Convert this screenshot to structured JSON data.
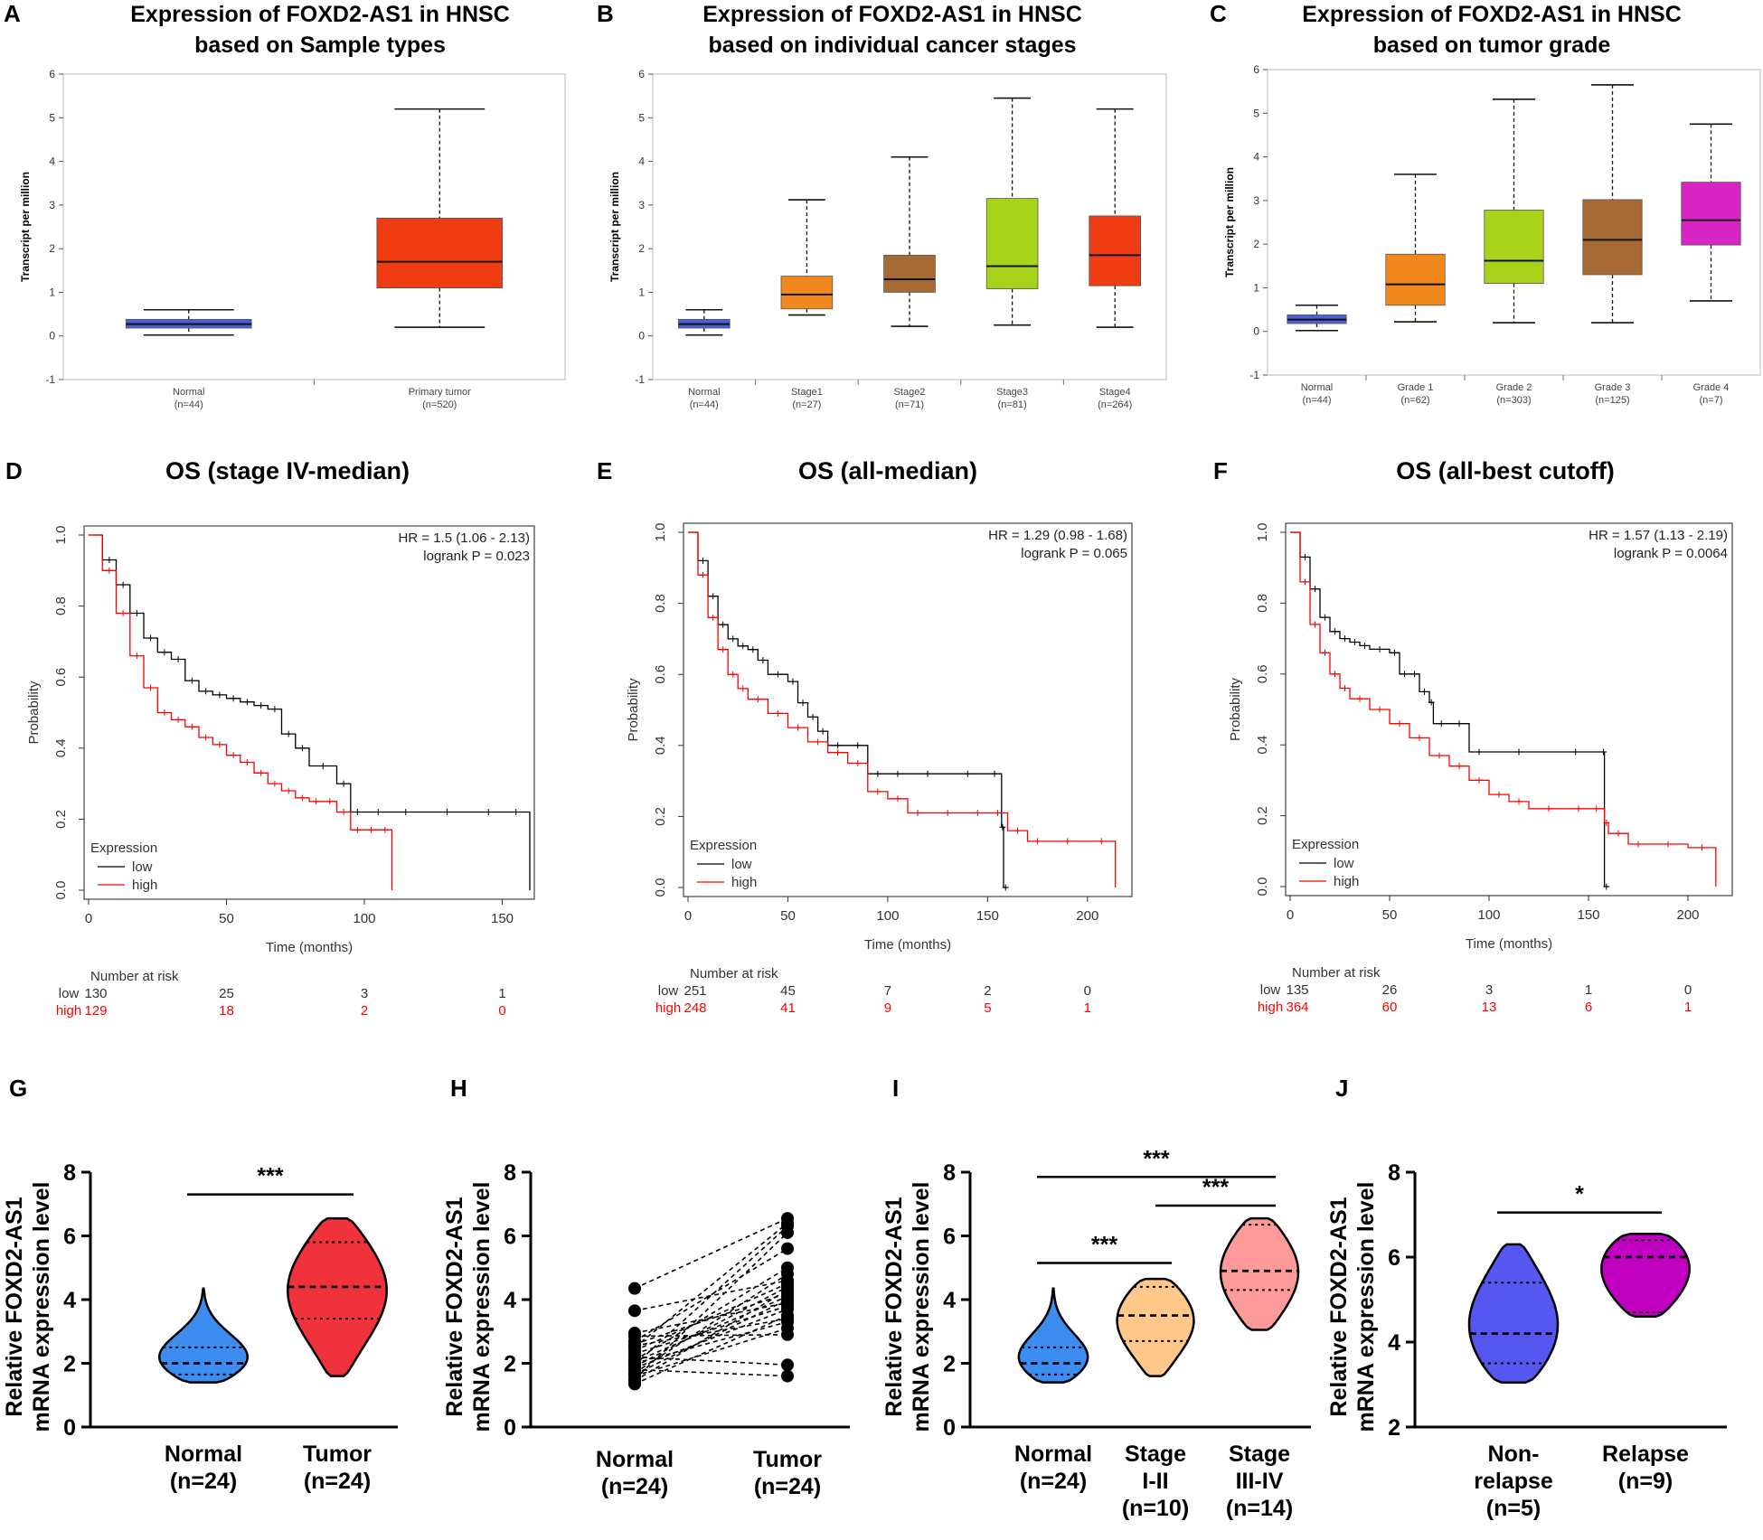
{
  "figure": {
    "colors": {
      "normal_blue": "#4a5fd8",
      "orange": "#f0881e",
      "brown": "#a86a35",
      "green": "#a7d41b",
      "red": "#f03c13",
      "magenta": "#d824c4",
      "km_high": "#ff0000",
      "km_low": "#000000",
      "violin_blue": "#3d8df0",
      "violin_red": "#f0323c",
      "violin_orange": "#ffc78a",
      "violin_pink": "#ff9a9a",
      "violin_purple": "#5656f0",
      "violin_magenta": "#c200c2"
    }
  },
  "chart_data": [
    {
      "panel": "A",
      "type": "box",
      "title": "Expression of FOXD2-AS1 in HNSC based on Sample types",
      "ylabel": "Transcript per million",
      "ylim": [
        -1,
        6
      ],
      "yticks": [
        "-1",
        "0",
        "1",
        "2",
        "3",
        "4",
        "5",
        "6"
      ],
      "boxes": [
        {
          "label": "Normal",
          "n": "(n=44)",
          "color": "#4a5fd8",
          "min": 0.02,
          "q1": 0.18,
          "median": 0.27,
          "q3": 0.38,
          "max": 0.6
        },
        {
          "label": "Primary tumor",
          "n": "(n=520)",
          "color": "#f03c13",
          "min": 0.2,
          "q1": 1.1,
          "median": 1.7,
          "q3": 2.7,
          "max": 5.2
        }
      ]
    },
    {
      "panel": "B",
      "type": "box",
      "title": "Expression of FOXD2-AS1 in HNSC based on individual cancer stages",
      "ylabel": "Transcript per million",
      "ylim": [
        -1,
        6
      ],
      "yticks": [
        "-1",
        "0",
        "1",
        "2",
        "3",
        "4",
        "5",
        "6"
      ],
      "boxes": [
        {
          "label": "Normal",
          "n": "(n=44)",
          "color": "#4a5fd8",
          "min": 0.02,
          "q1": 0.18,
          "median": 0.27,
          "q3": 0.38,
          "max": 0.6
        },
        {
          "label": "Stage1",
          "n": "(n=27)",
          "color": "#f0881e",
          "min": 0.48,
          "q1": 0.62,
          "median": 0.95,
          "q3": 1.37,
          "max": 3.12
        },
        {
          "label": "Stage2",
          "n": "(n=71)",
          "color": "#a86a35",
          "min": 0.22,
          "q1": 1.0,
          "median": 1.3,
          "q3": 1.85,
          "max": 4.1
        },
        {
          "label": "Stage3",
          "n": "(n=81)",
          "color": "#a7d41b",
          "min": 0.25,
          "q1": 1.08,
          "median": 1.6,
          "q3": 3.15,
          "max": 5.45
        },
        {
          "label": "Stage4",
          "n": "(n=264)",
          "color": "#f03c13",
          "min": 0.2,
          "q1": 1.15,
          "median": 1.85,
          "q3": 2.75,
          "max": 5.2
        }
      ]
    },
    {
      "panel": "C",
      "type": "box",
      "title": "Expression of FOXD2-AS1 in HNSC based on tumor grade",
      "ylabel": "Transcript per million",
      "ylim": [
        -1,
        6
      ],
      "yticks": [
        "-1",
        "0",
        "1",
        "2",
        "3",
        "4",
        "5",
        "6"
      ],
      "boxes": [
        {
          "label": "Normal",
          "n": "(n=44)",
          "color": "#4a5fd8",
          "min": 0.02,
          "q1": 0.18,
          "median": 0.27,
          "q3": 0.38,
          "max": 0.6
        },
        {
          "label": "Grade 1",
          "n": "(n=62)",
          "color": "#f0881e",
          "min": 0.22,
          "q1": 0.6,
          "median": 1.08,
          "q3": 1.77,
          "max": 3.6
        },
        {
          "label": "Grade 2",
          "n": "(n=303)",
          "color": "#a7d41b",
          "min": 0.2,
          "q1": 1.1,
          "median": 1.62,
          "q3": 2.78,
          "max": 5.32
        },
        {
          "label": "Grade 3",
          "n": "(n=125)",
          "color": "#a86a35",
          "min": 0.2,
          "q1": 1.3,
          "median": 2.1,
          "q3": 3.02,
          "max": 5.65
        },
        {
          "label": "Grade 4",
          "n": "(n=7)",
          "color": "#d824c4",
          "min": 0.7,
          "q1": 1.98,
          "median": 2.55,
          "q3": 3.42,
          "max": 4.75
        }
      ]
    },
    {
      "panel": "D",
      "type": "line",
      "title": "OS (stage IV-median)",
      "xlabel": "Time (months)",
      "ylabel": "Probability",
      "xlim": [
        0,
        160
      ],
      "ylim": [
        0,
        1
      ],
      "xticks": [
        "0",
        "50",
        "100",
        "150"
      ],
      "yticks": [
        "0.0",
        "0.2",
        "0.4",
        "0.6",
        "0.8",
        "1.0"
      ],
      "hr": "HR = 1.5 (1.06 - 2.13)",
      "logrank": "logrank P = 0.023",
      "legend_title": "Expression",
      "series": [
        {
          "name": "low",
          "color": "#000000",
          "x": [
            0,
            5,
            10,
            15,
            20,
            25,
            30,
            35,
            40,
            45,
            50,
            55,
            60,
            65,
            70,
            75,
            80,
            90,
            95,
            100,
            110,
            120,
            140,
            150,
            160
          ],
          "y": [
            1.0,
            0.93,
            0.86,
            0.78,
            0.71,
            0.67,
            0.65,
            0.59,
            0.56,
            0.55,
            0.54,
            0.53,
            0.52,
            0.51,
            0.44,
            0.4,
            0.35,
            0.3,
            0.22,
            0.22,
            0.22,
            0.22,
            0.22,
            0.22,
            0
          ]
        },
        {
          "name": "high",
          "color": "#ff0000",
          "x": [
            0,
            5,
            10,
            15,
            20,
            25,
            30,
            35,
            40,
            45,
            50,
            55,
            60,
            65,
            70,
            75,
            80,
            85,
            90,
            95,
            100,
            105,
            110
          ],
          "y": [
            1.0,
            0.9,
            0.78,
            0.66,
            0.57,
            0.5,
            0.48,
            0.46,
            0.43,
            0.41,
            0.38,
            0.36,
            0.33,
            0.3,
            0.28,
            0.26,
            0.25,
            0.25,
            0.22,
            0.17,
            0.17,
            0.17,
            0
          ]
        }
      ],
      "risk": {
        "title": "Number at risk",
        "low": [
          "130",
          "25",
          "3",
          "1"
        ],
        "high": [
          "129",
          "18",
          "2",
          "0"
        ]
      }
    },
    {
      "panel": "E",
      "type": "line",
      "title": "OS (all-median)",
      "xlabel": "Time (months)",
      "ylabel": "Probability",
      "xlim": [
        0,
        220
      ],
      "ylim": [
        0,
        1
      ],
      "xticks": [
        "0",
        "50",
        "100",
        "150",
        "200"
      ],
      "yticks": [
        "0.0",
        "0.2",
        "0.4",
        "0.6",
        "0.8",
        "1.0"
      ],
      "hr": "HR = 1.29 (0.98 - 1.68)",
      "logrank": "logrank P = 0.065",
      "legend_title": "Expression",
      "series": [
        {
          "name": "low",
          "color": "#000000",
          "x": [
            0,
            5,
            10,
            15,
            20,
            25,
            30,
            35,
            40,
            50,
            55,
            60,
            65,
            70,
            80,
            90,
            100,
            110,
            130,
            150,
            157,
            158,
            160
          ],
          "y": [
            1.0,
            0.92,
            0.82,
            0.74,
            0.7,
            0.68,
            0.67,
            0.64,
            0.6,
            0.58,
            0.52,
            0.48,
            0.44,
            0.4,
            0.4,
            0.32,
            0.32,
            0.32,
            0.32,
            0.32,
            0.17,
            0,
            0
          ]
        },
        {
          "name": "high",
          "color": "#ff0000",
          "x": [
            0,
            5,
            10,
            15,
            20,
            25,
            30,
            40,
            50,
            60,
            70,
            80,
            90,
            100,
            110,
            120,
            140,
            150,
            160,
            170,
            180,
            200,
            214
          ],
          "y": [
            1.0,
            0.88,
            0.76,
            0.67,
            0.6,
            0.56,
            0.53,
            0.49,
            0.45,
            0.41,
            0.38,
            0.35,
            0.27,
            0.25,
            0.21,
            0.21,
            0.21,
            0.21,
            0.16,
            0.13,
            0.13,
            0.13,
            0
          ]
        }
      ],
      "risk": {
        "title": "Number at risk",
        "low": [
          "251",
          "45",
          "7",
          "2",
          "0"
        ],
        "high": [
          "248",
          "41",
          "9",
          "5",
          "1"
        ]
      }
    },
    {
      "panel": "F",
      "type": "line",
      "title": "OS (all-best cutoff)",
      "xlabel": "Time (months)",
      "ylabel": "Probability",
      "xlim": [
        0,
        220
      ],
      "ylim": [
        0,
        1
      ],
      "xticks": [
        "0",
        "50",
        "100",
        "150",
        "200"
      ],
      "yticks": [
        "0.0",
        "0.2",
        "0.4",
        "0.6",
        "0.8",
        "1.0"
      ],
      "hr": "HR = 1.57 (1.13 - 2.19)",
      "logrank": "logrank P = 0.0064",
      "legend_title": "Expression",
      "series": [
        {
          "name": "low",
          "color": "#000000",
          "x": [
            0,
            5,
            10,
            15,
            20,
            25,
            30,
            35,
            40,
            50,
            55,
            60,
            65,
            70,
            72,
            80,
            90,
            100,
            130,
            157,
            158,
            160
          ],
          "y": [
            1.0,
            0.93,
            0.84,
            0.76,
            0.72,
            0.7,
            0.69,
            0.68,
            0.67,
            0.66,
            0.6,
            0.6,
            0.55,
            0.52,
            0.46,
            0.46,
            0.38,
            0.38,
            0.38,
            0.38,
            0,
            0
          ]
        },
        {
          "name": "high",
          "color": "#ff0000",
          "x": [
            0,
            5,
            10,
            15,
            20,
            25,
            30,
            40,
            50,
            60,
            70,
            80,
            90,
            100,
            110,
            120,
            140,
            150,
            158,
            160,
            170,
            180,
            200,
            214
          ],
          "y": [
            1.0,
            0.86,
            0.74,
            0.66,
            0.6,
            0.56,
            0.53,
            0.5,
            0.46,
            0.42,
            0.37,
            0.34,
            0.3,
            0.26,
            0.24,
            0.22,
            0.22,
            0.22,
            0.18,
            0.15,
            0.12,
            0.12,
            0.11,
            0
          ]
        }
      ],
      "risk": {
        "title": "Number at risk",
        "low": [
          "135",
          "26",
          "3",
          "1",
          "0"
        ],
        "high": [
          "364",
          "60",
          "13",
          "6",
          "1"
        ]
      }
    },
    {
      "panel": "G",
      "type": "violin",
      "ylabel": [
        "Relative FOXD2-AS1",
        "mRNA expression level"
      ],
      "ylim": [
        0,
        8
      ],
      "yticks": [
        "0",
        "2",
        "4",
        "6",
        "8"
      ],
      "groups": [
        {
          "label": [
            "Normal",
            "(n=24)"
          ],
          "color": "#3d8df0",
          "min": 1.4,
          "max": 4.35,
          "median": 2.0,
          "q1": 1.65,
          "q3": 2.5
        },
        {
          "label": [
            "Tumor",
            "(n=24)"
          ],
          "color": "#f0323c",
          "min": 1.6,
          "max": 6.55,
          "median": 4.4,
          "q1": 3.4,
          "q3": 5.8
        }
      ],
      "significance": [
        {
          "label": "***",
          "from": 0,
          "to": 1,
          "y": 7.3
        }
      ]
    },
    {
      "panel": "H",
      "type": "scatter",
      "ylabel": [
        "Relative FOXD2-AS1",
        "mRNA expression level"
      ],
      "ylim": [
        0,
        8
      ],
      "yticks": [
        "0",
        "2",
        "4",
        "6",
        "8"
      ],
      "groups": [
        [
          "Normal",
          "(n=24)"
        ],
        [
          "Tumor",
          "(n=24)"
        ]
      ],
      "normal": [
        4.35,
        3.65,
        2.95,
        2.85,
        2.7,
        2.6,
        2.55,
        2.5,
        2.4,
        2.3,
        2.2,
        2.1,
        2.05,
        2.0,
        1.95,
        1.9,
        1.85,
        1.8,
        1.7,
        1.65,
        1.6,
        1.5,
        1.45,
        1.35
      ],
      "tumor": [
        6.55,
        6.4,
        6.3,
        6.1,
        5.6,
        5.0,
        4.8,
        4.6,
        4.5,
        4.4,
        4.3,
        4.2,
        4.1,
        4.0,
        3.9,
        3.8,
        3.7,
        3.5,
        3.4,
        3.3,
        3.1,
        2.9,
        1.95,
        1.6
      ]
    },
    {
      "panel": "I",
      "type": "violin",
      "ylabel": [
        "Relative FOXD2-AS1",
        "mRNA expression level"
      ],
      "ylim": [
        0,
        8
      ],
      "yticks": [
        "0",
        "2",
        "4",
        "6",
        "8"
      ],
      "groups": [
        {
          "label": [
            "Normal",
            "(n=24)"
          ],
          "color": "#3d8df0",
          "min": 1.4,
          "max": 4.35,
          "median": 2.0,
          "q1": 1.65,
          "q3": 2.5
        },
        {
          "label": [
            "Stage",
            "I-II",
            "(n=10)"
          ],
          "color": "#ffc78a",
          "min": 1.6,
          "max": 4.65,
          "median": 3.5,
          "q1": 2.7,
          "q3": 4.4
        },
        {
          "label": [
            "Stage",
            "III-IV",
            "(n=14)"
          ],
          "color": "#ff9a9a",
          "min": 3.05,
          "max": 6.55,
          "median": 4.9,
          "q1": 4.3,
          "q3": 6.35
        }
      ],
      "significance": [
        {
          "label": "***",
          "from": 0,
          "to": 2,
          "y": 7.85
        },
        {
          "label": "***",
          "from": 1,
          "to": 2,
          "y": 6.95
        },
        {
          "label": "***",
          "from": 0,
          "to": 1,
          "y": 5.15
        }
      ]
    },
    {
      "panel": "J",
      "type": "violin",
      "ylabel": [
        "Relative FOXD2-AS1",
        "mRNA expression level"
      ],
      "ylim": [
        2,
        8
      ],
      "yticks": [
        "2",
        "4",
        "6",
        "8"
      ],
      "groups": [
        {
          "label": [
            "Non-",
            "relapse",
            "(n=5)"
          ],
          "color": "#5656f0",
          "min": 3.05,
          "max": 6.3,
          "median": 4.2,
          "q1": 3.5,
          "q3": 5.4
        },
        {
          "label": [
            "Relapse",
            "(n=9)"
          ],
          "color": "#c200c2",
          "min": 4.6,
          "max": 6.55,
          "median": 6.0,
          "q1": 4.7,
          "q3": 6.4
        }
      ],
      "significance": [
        {
          "label": "*",
          "from": 0,
          "to": 1,
          "y": 7.05
        }
      ]
    }
  ],
  "panels": {
    "A": {
      "letter": "A",
      "title1": "Expression of FOXD2-AS1 in HNSC",
      "title2": "based on Sample types"
    },
    "B": {
      "letter": "B",
      "title1": "Expression of FOXD2-AS1 in HNSC",
      "title2": "based on individual cancer stages"
    },
    "C": {
      "letter": "C",
      "title1": "Expression of FOXD2-AS1 in HNSC",
      "title2": "based on tumor grade"
    },
    "D": {
      "letter": "D",
      "title1": "OS (stage IV-median)"
    },
    "E": {
      "letter": "E",
      "title1": "OS (all-median)"
    },
    "F": {
      "letter": "F",
      "title1": "OS (all-best cutoff)"
    },
    "G": {
      "letter": "G"
    },
    "H": {
      "letter": "H"
    },
    "I": {
      "letter": "I"
    },
    "J": {
      "letter": "J"
    }
  }
}
